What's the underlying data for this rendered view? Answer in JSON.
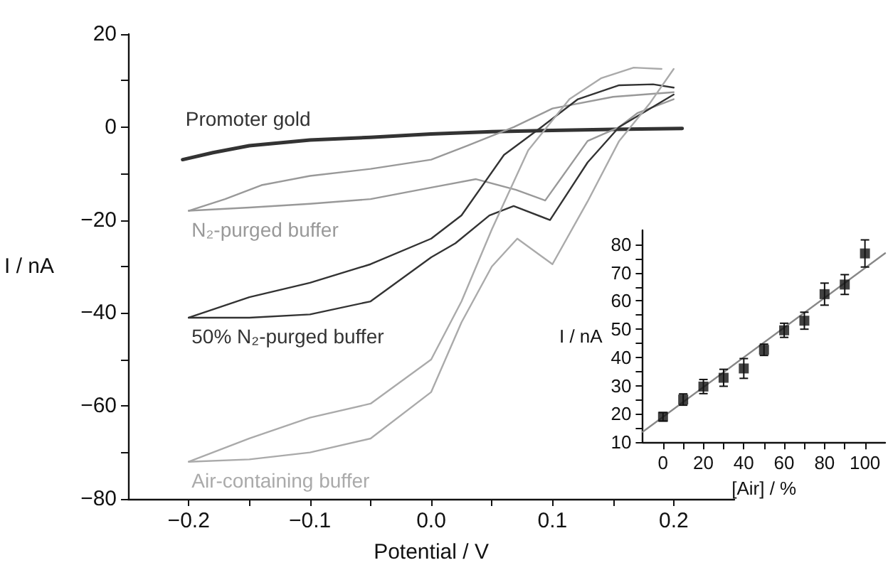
{
  "chart_data": [
    {
      "type": "line",
      "xlabel": "Potential / V",
      "ylabel": "I / nA",
      "marker": "none",
      "xlim": [
        -0.25,
        0.25
      ],
      "ylim": [
        -80,
        20
      ],
      "xticks": [
        {
          "value": -0.2,
          "label": "−0.2"
        },
        {
          "value": -0.15,
          "label": null
        },
        {
          "value": -0.1,
          "label": "−0.1"
        },
        {
          "value": -0.05,
          "label": null
        },
        {
          "value": 0,
          "label": "0.0"
        },
        {
          "value": 0.05,
          "label": null
        },
        0.1,
        {
          "value": 0.15,
          "label": null
        },
        0.2
      ],
      "yticks": [
        {
          "value": -80,
          "label": "−80"
        },
        {
          "value": -70,
          "label": null
        },
        {
          "value": -60,
          "label": "−60"
        },
        {
          "value": -50,
          "label": null
        },
        {
          "value": -40,
          "label": "−40"
        },
        {
          "value": -30,
          "label": null
        },
        {
          "value": -20,
          "label": "−20"
        },
        {
          "value": -10,
          "label": null
        },
        0,
        {
          "value": 10,
          "label": null
        },
        20
      ],
      "series": [
        {
          "name": "Promoter gold",
          "color": "#333333",
          "x": [
            -0.205,
            -0.18,
            -0.15,
            -0.1,
            -0.05,
            0,
            0.05,
            0.1,
            0.15,
            0.207
          ],
          "values": [
            -7,
            -5.5,
            -4,
            -2.8,
            -2.2,
            -1.5,
            -1,
            -0.7,
            -0.5,
            -0.3
          ]
        },
        {
          "name": "N₂-purged buffer",
          "color": "#999999",
          "x": [
            -0.2,
            -0.17,
            -0.14,
            -0.1,
            -0.05,
            0,
            0.03,
            0.068,
            0.1,
            0.15,
            0.2
          ],
          "values": [
            -18,
            -15.5,
            -12.5,
            -10.5,
            -9,
            -7,
            -4,
            0,
            4,
            6.5,
            7.5
          ]
        },
        {
          "color": "#999999",
          "x": [
            -0.2,
            -0.15,
            -0.1,
            -0.05,
            0,
            0.037,
            0.07,
            0.094,
            0.129,
            0.155,
            0.17,
            0.2
          ],
          "values": [
            -18,
            -17.3,
            -16.5,
            -15.5,
            -13,
            -11.2,
            -13.5,
            -15.8,
            -3,
            0,
            3,
            6
          ]
        },
        {
          "name": "50% N₂-purged buffer",
          "color": "#333333",
          "x": [
            -0.2,
            -0.15,
            -0.1,
            -0.05,
            0,
            0.025,
            0.06,
            0.091,
            0.121,
            0.155,
            0.183,
            0.2
          ],
          "values": [
            -41,
            -36.6,
            -33.5,
            -29.5,
            -24,
            -19,
            -6,
            0,
            6,
            9,
            9.2,
            8.5
          ]
        },
        {
          "color": "#333333",
          "x": [
            -0.2,
            -0.15,
            -0.1,
            -0.05,
            0,
            0.02,
            0.048,
            0.068,
            0.098,
            0.129,
            0.155,
            0.2
          ],
          "values": [
            -41,
            -41,
            -40.3,
            -37.5,
            -28,
            -25,
            -19,
            -17,
            -20,
            -7.6,
            0,
            7
          ]
        },
        {
          "name": "Air-containing buffer",
          "color": "#aaaaaa",
          "x": [
            -0.2,
            -0.15,
            -0.1,
            -0.05,
            0,
            0.025,
            0.05,
            0.08,
            0.114,
            0.14,
            0.167,
            0.19
          ],
          "values": [
            -72,
            -67,
            -62.5,
            -59.5,
            -50,
            -37.5,
            -22,
            -5,
            6,
            10.5,
            12.8,
            12.5
          ]
        },
        {
          "color": "#aaaaaa",
          "x": [
            -0.2,
            -0.15,
            -0.1,
            -0.05,
            0,
            0.025,
            0.05,
            0.071,
            0.1,
            0.129,
            0.155,
            0.18,
            0.2
          ],
          "values": [
            -72,
            -71.5,
            -70,
            -67,
            -57,
            -42,
            -30,
            -24,
            -29.5,
            -16,
            -3,
            5,
            12.5
          ]
        }
      ]
    },
    {
      "type": "scatter",
      "xlabel": "[Air] / %",
      "ylabel": "I / nA",
      "xlim": [
        -10,
        110
      ],
      "ylim": [
        10,
        85
      ],
      "xticks": [
        0,
        {
          "value": 10,
          "label": null
        },
        20,
        {
          "value": 30,
          "label": null
        },
        40,
        {
          "value": 50,
          "label": null
        },
        60,
        {
          "value": 70,
          "label": null
        },
        80,
        {
          "value": 90,
          "label": null
        },
        100
      ],
      "yticks": [
        10,
        {
          "value": 15,
          "label": null
        },
        20,
        {
          "value": 25,
          "label": null
        },
        30,
        {
          "value": 35,
          "label": null
        },
        40,
        {
          "value": 45,
          "label": null
        },
        50,
        {
          "value": 55,
          "label": null
        },
        60,
        {
          "value": 65,
          "label": null
        },
        70,
        {
          "value": 75,
          "label": null
        },
        80
      ],
      "series": [
        {
          "marker": "square",
          "color": "#111111",
          "x": [
            0,
            10,
            20,
            30,
            40,
            50,
            60,
            70,
            80,
            90,
            100
          ],
          "values": [
            19,
            25.1,
            29.7,
            32.8,
            36.1,
            42.7,
            49.6,
            53,
            62.4,
            65.8,
            76.8
          ],
          "errors": [
            1.5,
            2,
            2.5,
            3,
            3.5,
            2,
            2.5,
            3,
            3.9,
            3.5,
            4.8
          ]
        },
        {
          "type": "line",
          "marker": "none",
          "color": "#888888",
          "x": [
            -10,
            110
          ],
          "values": [
            13.7,
            76.9
          ]
        }
      ]
    }
  ]
}
